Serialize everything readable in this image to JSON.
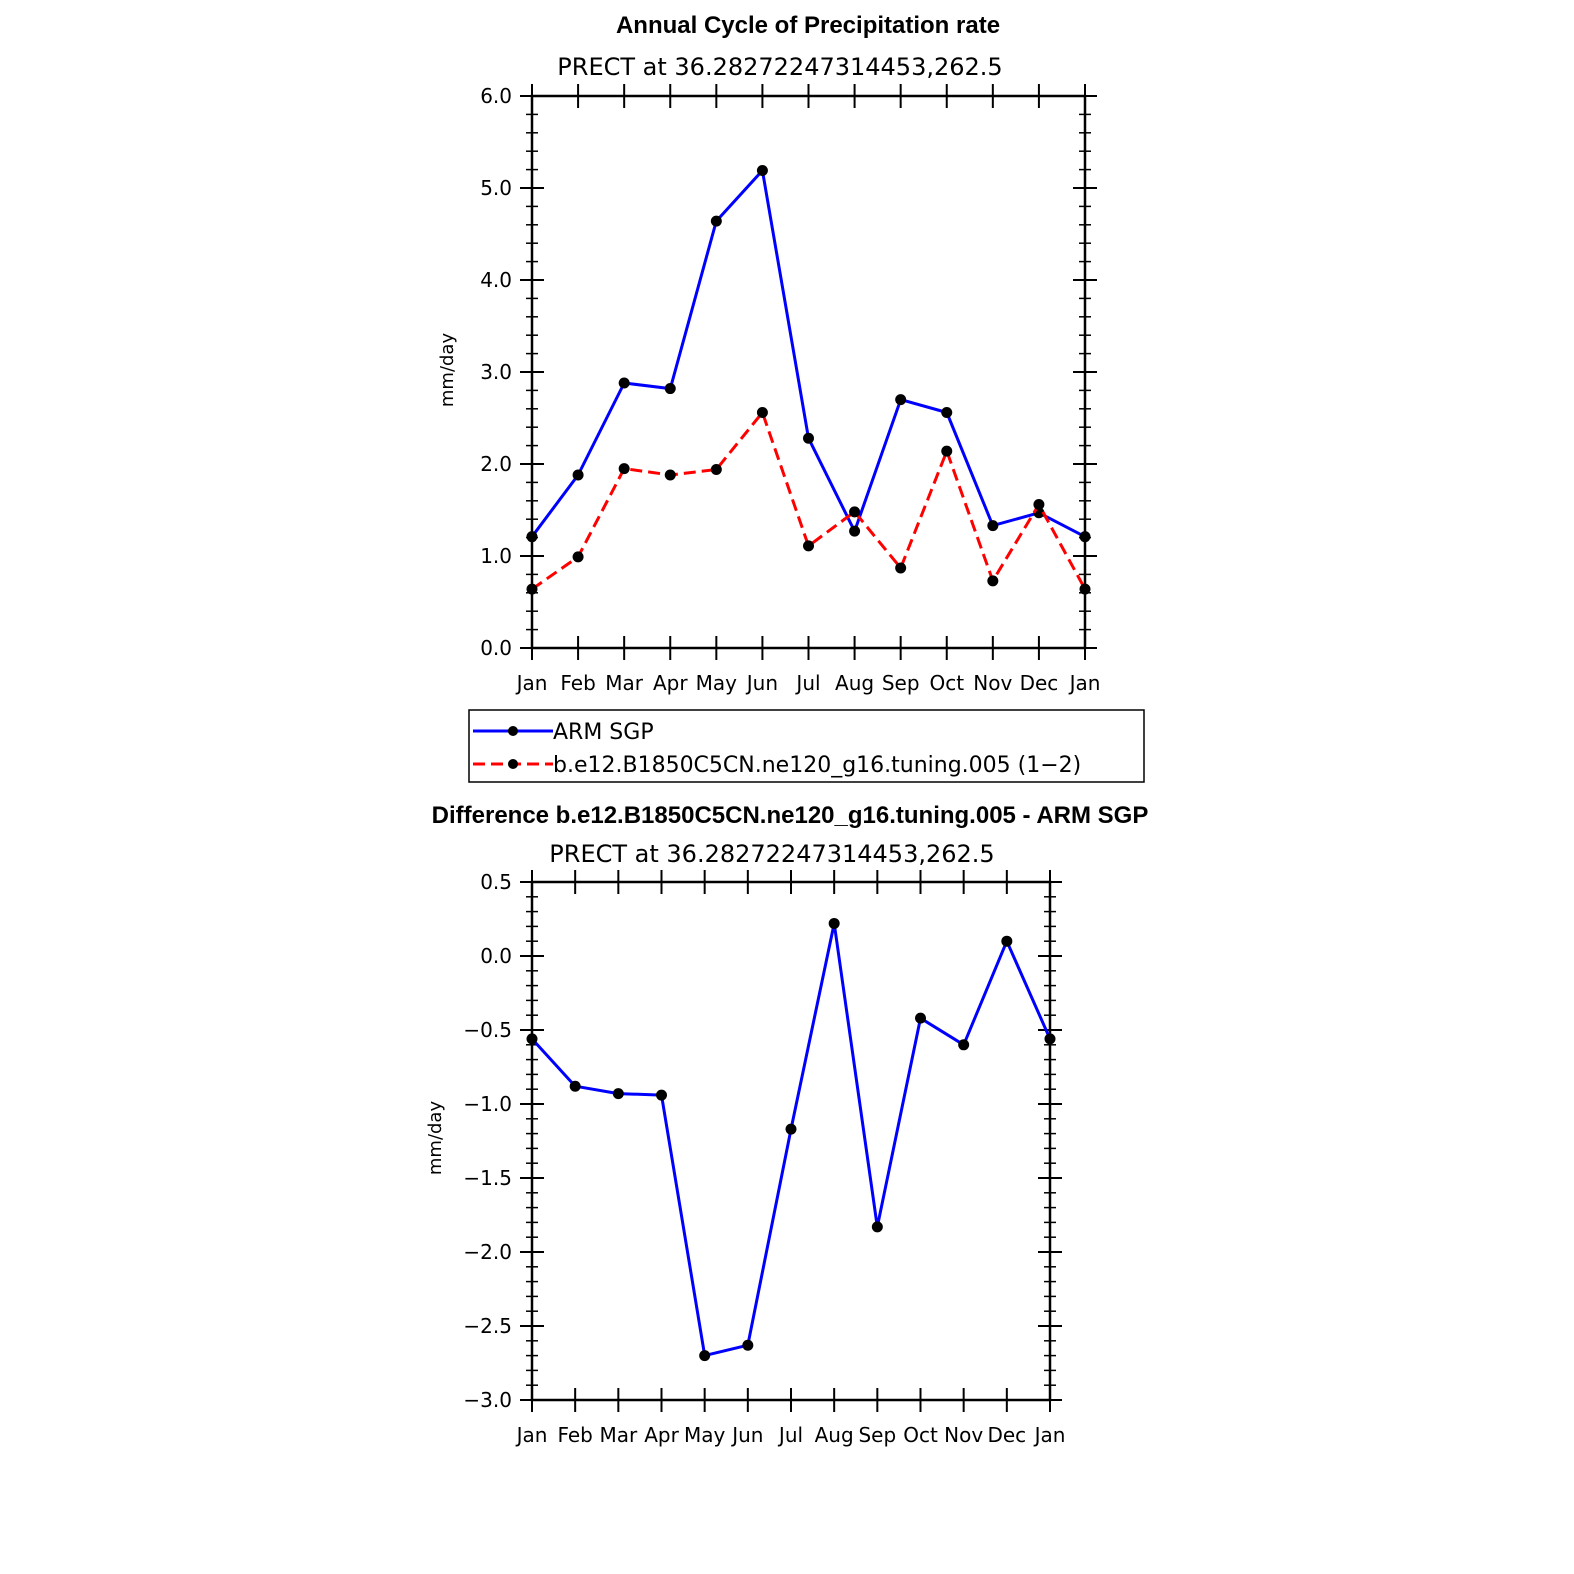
{
  "colors": {
    "obs": "#0000ff",
    "model": "#ff0000",
    "marker": "#000000",
    "frame": "#000000"
  },
  "chart_data": [
    {
      "type": "line",
      "title": "Annual Cycle of Precipitation rate",
      "subtitle": "PRECT at 36.28272247314453,262.5",
      "xlabel": "",
      "ylabel": "mm/day",
      "categories": [
        "Jan",
        "Feb",
        "Mar",
        "Apr",
        "May",
        "Jun",
        "Jul",
        "Aug",
        "Sep",
        "Oct",
        "Nov",
        "Dec",
        "Jan"
      ],
      "ylim": [
        0,
        6
      ],
      "yticks": [
        0,
        1,
        2,
        3,
        4,
        5,
        6
      ],
      "ytick_labels": [
        "0.0",
        "1.0",
        "2.0",
        "3.0",
        "4.0",
        "5.0",
        "6.0"
      ],
      "series": [
        {
          "name": "ARM SGP",
          "style": "solid",
          "color": "#0000ff",
          "values": [
            1.21,
            1.88,
            2.88,
            2.82,
            4.64,
            5.19,
            2.28,
            1.27,
            2.7,
            2.56,
            1.33,
            1.47,
            1.21
          ]
        },
        {
          "name": "b.e12.B1850C5CN.ne120_g16.tuning.005 (1−2)",
          "style": "dashed",
          "color": "#ff0000",
          "values": [
            0.64,
            0.99,
            1.95,
            1.88,
            1.94,
            2.56,
            1.11,
            1.48,
            0.87,
            2.14,
            0.73,
            1.56,
            0.64
          ]
        }
      ],
      "legend": {
        "placement": "below"
      }
    },
    {
      "type": "line",
      "title": "Difference b.e12.B1850C5CN.ne120_g16.tuning.005 - ARM SGP",
      "subtitle": "PRECT at 36.28272247314453,262.5",
      "xlabel": "",
      "ylabel": "mm/day",
      "categories": [
        "Jan",
        "Feb",
        "Mar",
        "Apr",
        "May",
        "Jun",
        "Jul",
        "Aug",
        "Sep",
        "Oct",
        "Nov",
        "Dec",
        "Jan"
      ],
      "ylim": [
        -3.0,
        0.5
      ],
      "yticks": [
        -3.0,
        -2.5,
        -2.0,
        -1.5,
        -1.0,
        -0.5,
        0.0,
        0.5
      ],
      "ytick_labels": [
        "−3.0",
        "−2.5",
        "−2.0",
        "−1.5",
        "−1.0",
        "−0.5",
        "0.0",
        "0.5"
      ],
      "series": [
        {
          "name": "Difference",
          "style": "solid",
          "color": "#0000ff",
          "values": [
            -0.56,
            -0.88,
            -0.93,
            -0.94,
            -2.7,
            -2.63,
            -1.17,
            0.22,
            -1.83,
            -0.42,
            -0.6,
            0.1,
            -0.56
          ]
        }
      ]
    }
  ]
}
